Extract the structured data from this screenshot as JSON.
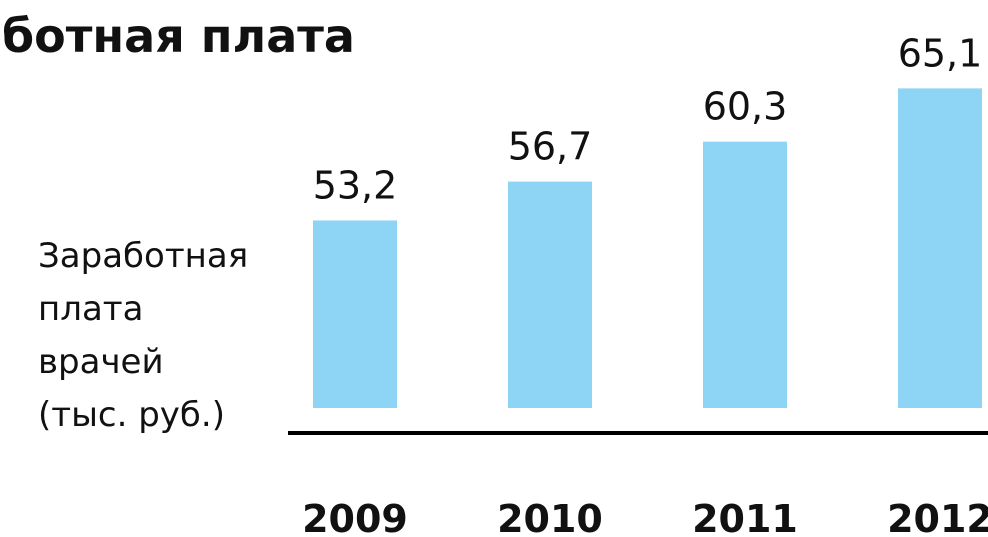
{
  "chart_data": {
    "type": "bar",
    "title": "ботная плата",
    "ylabel": [
      "Заработная",
      "плата",
      "врачей",
      "(тыс. руб.)"
    ],
    "categories": [
      "2009",
      "2010",
      "2011",
      "2012"
    ],
    "values": [
      53.2,
      56.7,
      60.3,
      65.1
    ],
    "value_labels": [
      "53,2",
      "56,7",
      "60,3",
      "65,1"
    ],
    "color": "#8ed5f5",
    "ylim": [
      36.3,
      70
    ]
  }
}
